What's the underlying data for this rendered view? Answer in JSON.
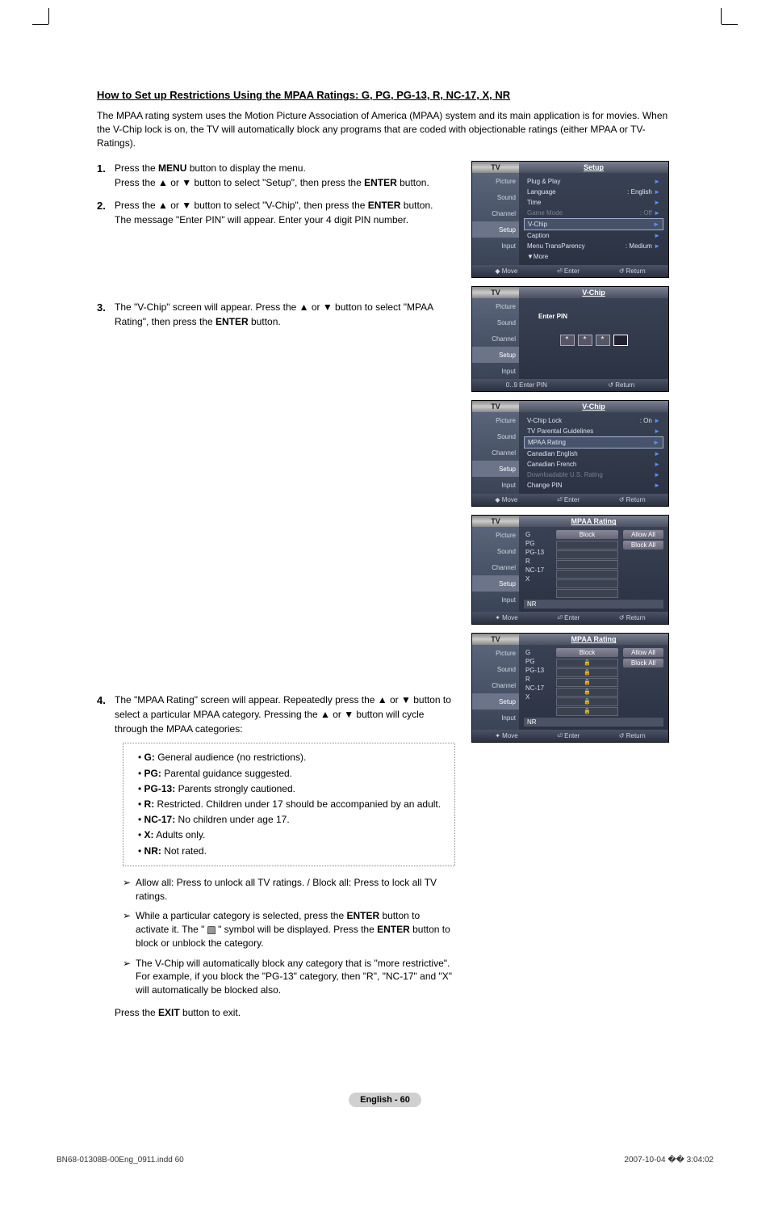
{
  "heading": "How to Set up Restrictions Using the MPAA Ratings: G, PG, PG-13, R, NC-17, X, NR",
  "intro": "The MPAA rating system uses the Motion Picture Association of America (MPAA) system and its main application is for movies. When the V-Chip lock is on, the TV will automatically block any programs that are coded with objectionable ratings (either MPAA or TV-Ratings).",
  "steps": {
    "1": {
      "a": "Press the ",
      "b": "MENU",
      "c": " button to display the menu.",
      "d": "Press the ▲ or ▼ button to select \"Setup\", then press the ",
      "e": "ENTER",
      "f": " button."
    },
    "2": {
      "a": "Press the ▲ or ▼ button to select \"V-Chip\", then press the ",
      "b": "ENTER",
      "c": " button.",
      "d": "The message \"Enter PIN\" will appear. Enter your 4 digit PIN number."
    },
    "3": {
      "a": "The \"V-Chip\" screen will appear. Press the ▲ or ▼ button to select \"MPAA Rating\", then press the ",
      "b": "ENTER",
      "c": " button."
    },
    "4": {
      "a": "The \"MPAA Rating\" screen will appear. Repeatedly press the ▲ or ▼ button to select a particular MPAA category. Pressing the ▲ or ▼ button will cycle through the MPAA categories:"
    }
  },
  "ratings": [
    {
      "code": "G:",
      "desc": " General audience (no restrictions)."
    },
    {
      "code": "PG:",
      "desc": " Parental guidance suggested."
    },
    {
      "code": "PG-13:",
      "desc": " Parents strongly cautioned."
    },
    {
      "code": "R:",
      "desc": " Restricted. Children under 17 should be accompanied by an adult."
    },
    {
      "code": "NC-17:",
      "desc": " No children under age 17."
    },
    {
      "code": "X:",
      "desc": " Adults only."
    },
    {
      "code": "NR:",
      "desc": " Not rated."
    }
  ],
  "notes": {
    "1": "Allow all: Press to unlock all TV ratings. / Block all: Press to lock all TV ratings.",
    "2a": "While a particular category is selected, press the ",
    "2b": "ENTER",
    "2c": " button to activate it. The \" ",
    "2d": " \" symbol will be displayed. Press the ",
    "2e": "ENTER",
    "2f": " button to block or unblock the category.",
    "3": "The V-Chip will automatically block any category that is \"more restrictive\". For example, if you block the \"PG-13\" category, then \"R\", \"NC-17\" and \"X\" will automatically be blocked also."
  },
  "exit": {
    "a": "Press the ",
    "b": "EXIT",
    "c": " button to exit."
  },
  "pageLabel": "English - 60",
  "footer": {
    "left": "BN68-01308B-00Eng_0911.indd   60",
    "right": "2007-10-04   �� 3:04:02"
  },
  "osd": {
    "tvLabel": "TV",
    "sidebar": [
      "Picture",
      "Sound",
      "Channel",
      "Setup",
      "Input"
    ],
    "footerNav": {
      "move": "Move",
      "enter": "Enter",
      "return": "Return",
      "enterpin": "Enter PIN"
    },
    "screen1": {
      "title": "Setup",
      "rows": [
        {
          "label": "Plug & Play",
          "value": "",
          "arrow": true
        },
        {
          "label": "Language",
          "value": ": English",
          "arrow": true
        },
        {
          "label": "Time",
          "value": "",
          "arrow": true
        },
        {
          "label": "Game Mode",
          "value": ": Off",
          "arrow": true,
          "disabled": true
        },
        {
          "label": "V-Chip",
          "value": "",
          "arrow": true,
          "selected": true
        },
        {
          "label": "Caption",
          "value": "",
          "arrow": true
        },
        {
          "label": "Menu TransParency",
          "value": ": Medium",
          "arrow": true
        },
        {
          "label": "▼More",
          "value": "",
          "arrow": false
        }
      ]
    },
    "screen2": {
      "title": "V-Chip",
      "enterPinLabel": "Enter PIN",
      "stars": [
        "*",
        "*",
        "*",
        ""
      ]
    },
    "screen3": {
      "title": "V-Chip",
      "rows": [
        {
          "label": "V-Chip Lock",
          "value": ": On",
          "arrow": true
        },
        {
          "label": "TV Parental Guidelines",
          "value": "",
          "arrow": true
        },
        {
          "label": "MPAA Rating",
          "value": "",
          "arrow": true,
          "selected": true
        },
        {
          "label": "Canadian English",
          "value": "",
          "arrow": true
        },
        {
          "label": "Canadian French",
          "value": "",
          "arrow": true
        },
        {
          "label": "Downloadable U.S. Rating",
          "value": "",
          "arrow": true,
          "disabled": true
        },
        {
          "label": "Change PIN",
          "value": "",
          "arrow": true
        }
      ]
    },
    "screen4": {
      "title": "MPAA Rating",
      "blockHeader": "Block",
      "allowAll": "Allow All",
      "blockAll": "Block All",
      "ratings": [
        "G",
        "PG",
        "PG-13",
        "R",
        "NC-17",
        "X"
      ],
      "nr": "NR",
      "locks": [
        false,
        false,
        false,
        false,
        false,
        false
      ]
    },
    "screen5": {
      "title": "MPAA Rating",
      "blockHeader": "Block",
      "allowAll": "Allow All",
      "blockAll": "Block All",
      "ratings": [
        "G",
        "PG",
        "PG-13",
        "R",
        "NC-17",
        "X"
      ],
      "nr": "NR",
      "locks": [
        true,
        true,
        true,
        true,
        true,
        true
      ]
    }
  }
}
